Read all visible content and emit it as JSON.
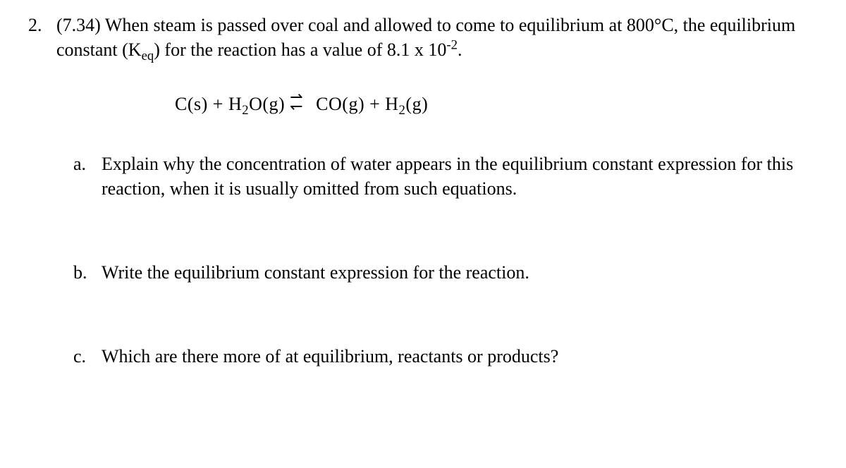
{
  "question": {
    "number": "2.",
    "ref": "(7.34)",
    "intro_before_sub": "When steam is passed over coal and allowed to come to equilibrium at 800°C, the equilibrium constant (K",
    "keq_sub": "eq",
    "intro_after_sub": ") for the reaction has a value of 8.1 x 10",
    "exp_sup": "-2",
    "intro_end": "."
  },
  "equation": {
    "t1": "C(s)  +  H",
    "s1": "2",
    "t2": "O(g)  ",
    "t3": "  CO(g)  + H",
    "s2": "2",
    "t4": "(g)"
  },
  "parts": {
    "a": {
      "label": "a.",
      "text": "Explain why the concentration of water appears in the equilibrium constant expression for this reaction, when it is usually omitted from such equations."
    },
    "b": {
      "label": "b.",
      "text": "Write the equilibrium constant expression for the reaction."
    },
    "c": {
      "label": "c.",
      "text": "Which are there more of at equilibrium, reactants or products?"
    }
  },
  "style": {
    "font_family": "Times New Roman",
    "font_size_pt": 20,
    "text_color": "#000000",
    "background_color": "#ffffff"
  }
}
